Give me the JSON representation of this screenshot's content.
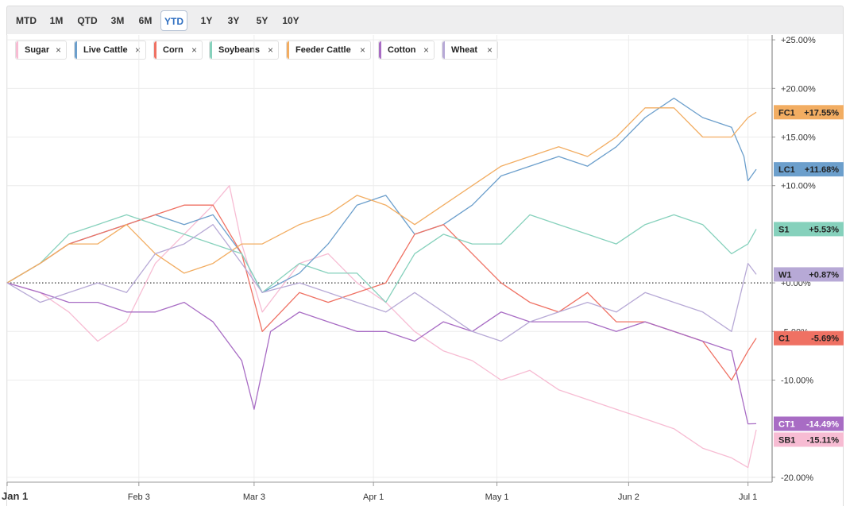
{
  "toolbar": {
    "ranges": [
      "MTD",
      "1M",
      "QTD",
      "3M",
      "6M",
      "YTD",
      "1Y",
      "3Y",
      "5Y",
      "10Y"
    ],
    "active": "YTD"
  },
  "chart_data": {
    "type": "line",
    "y_unit": "%",
    "ylim": [
      -20.5,
      25.5
    ],
    "y_ticks": [
      {
        "v": 25,
        "label": "+25.00%"
      },
      {
        "v": 20,
        "label": "+20.00%"
      },
      {
        "v": 15,
        "label": "+15.00%"
      },
      {
        "v": 10,
        "label": "+10.00%"
      },
      {
        "v": 0,
        "label": "+0.00%"
      },
      {
        "v": -5,
        "label": "-5.00%"
      },
      {
        "v": -10,
        "label": "-10.00%"
      },
      {
        "v": -20,
        "label": "-20.00%"
      }
    ],
    "x_start": "2025-01-02",
    "x_end": "2025-07-03",
    "x_ticks": [
      {
        "date": "2025-01-02",
        "label": "Jan 1"
      },
      {
        "date": "2025-02-03",
        "label": "Feb 3"
      },
      {
        "date": "2025-03-03",
        "label": "Mar 3"
      },
      {
        "date": "2025-04-01",
        "label": "Apr 1"
      },
      {
        "date": "2025-05-01",
        "label": "May 1"
      },
      {
        "date": "2025-06-02",
        "label": "Jun 2"
      },
      {
        "date": "2025-07-01",
        "label": "Jul 1"
      }
    ],
    "grid": true,
    "zero_line": "dotted",
    "legend": "top-left",
    "series": [
      {
        "name": "Sugar",
        "symbol": "SB1",
        "last": "-15.11%",
        "color": "#f7bcd3",
        "tag_text": "#222222",
        "points": [
          [
            "2025-01-02",
            0
          ],
          [
            "2025-01-10",
            -1
          ],
          [
            "2025-01-17",
            -3
          ],
          [
            "2025-01-24",
            -6
          ],
          [
            "2025-01-31",
            -4
          ],
          [
            "2025-02-07",
            2
          ],
          [
            "2025-02-14",
            5
          ],
          [
            "2025-02-21",
            8
          ],
          [
            "2025-02-25",
            10
          ],
          [
            "2025-02-28",
            4
          ],
          [
            "2025-03-05",
            -3
          ],
          [
            "2025-03-14",
            2
          ],
          [
            "2025-03-21",
            3
          ],
          [
            "2025-03-28",
            0
          ],
          [
            "2025-04-04",
            -2
          ],
          [
            "2025-04-11",
            -5
          ],
          [
            "2025-04-18",
            -7
          ],
          [
            "2025-04-25",
            -8
          ],
          [
            "2025-05-02",
            -10
          ],
          [
            "2025-05-09",
            -9
          ],
          [
            "2025-05-16",
            -11
          ],
          [
            "2025-05-23",
            -12
          ],
          [
            "2025-05-30",
            -13
          ],
          [
            "2025-06-06",
            -14
          ],
          [
            "2025-06-13",
            -15
          ],
          [
            "2025-06-20",
            -17
          ],
          [
            "2025-06-27",
            -18
          ],
          [
            "2025-07-01",
            -19
          ],
          [
            "2025-07-03",
            -15.11
          ]
        ]
      },
      {
        "name": "Live Cattle",
        "symbol": "LC1",
        "last": "+11.68%",
        "color": "#6c9fcc",
        "tag_text": "#222222",
        "points": [
          [
            "2025-01-02",
            0
          ],
          [
            "2025-01-10",
            2
          ],
          [
            "2025-01-17",
            4
          ],
          [
            "2025-01-24",
            5
          ],
          [
            "2025-01-31",
            6
          ],
          [
            "2025-02-07",
            7
          ],
          [
            "2025-02-14",
            6
          ],
          [
            "2025-02-21",
            7
          ],
          [
            "2025-02-28",
            3
          ],
          [
            "2025-03-05",
            -1
          ],
          [
            "2025-03-14",
            1
          ],
          [
            "2025-03-21",
            4
          ],
          [
            "2025-03-28",
            8
          ],
          [
            "2025-04-04",
            9
          ],
          [
            "2025-04-11",
            5
          ],
          [
            "2025-04-18",
            6
          ],
          [
            "2025-04-25",
            8
          ],
          [
            "2025-05-02",
            11
          ],
          [
            "2025-05-09",
            12
          ],
          [
            "2025-05-16",
            13
          ],
          [
            "2025-05-23",
            12
          ],
          [
            "2025-05-30",
            14
          ],
          [
            "2025-06-06",
            17
          ],
          [
            "2025-06-13",
            19
          ],
          [
            "2025-06-20",
            17
          ],
          [
            "2025-06-27",
            16
          ],
          [
            "2025-06-30",
            13
          ],
          [
            "2025-07-01",
            10.5
          ],
          [
            "2025-07-03",
            11.68
          ]
        ]
      },
      {
        "name": "Corn",
        "symbol": "C1",
        "last": "-5.69%",
        "color": "#ef7163",
        "tag_text": "#222222",
        "points": [
          [
            "2025-01-02",
            0
          ],
          [
            "2025-01-10",
            2
          ],
          [
            "2025-01-17",
            4
          ],
          [
            "2025-01-24",
            5
          ],
          [
            "2025-01-31",
            6
          ],
          [
            "2025-02-07",
            7
          ],
          [
            "2025-02-14",
            8
          ],
          [
            "2025-02-21",
            8
          ],
          [
            "2025-02-28",
            3
          ],
          [
            "2025-03-05",
            -5
          ],
          [
            "2025-03-14",
            -1
          ],
          [
            "2025-03-21",
            -2
          ],
          [
            "2025-03-28",
            -1
          ],
          [
            "2025-04-04",
            0
          ],
          [
            "2025-04-11",
            5
          ],
          [
            "2025-04-18",
            6
          ],
          [
            "2025-04-25",
            3
          ],
          [
            "2025-05-02",
            0
          ],
          [
            "2025-05-09",
            -2
          ],
          [
            "2025-05-16",
            -3
          ],
          [
            "2025-05-23",
            -1
          ],
          [
            "2025-05-30",
            -4
          ],
          [
            "2025-06-06",
            -4
          ],
          [
            "2025-06-13",
            -5
          ],
          [
            "2025-06-20",
            -6
          ],
          [
            "2025-06-27",
            -10
          ],
          [
            "2025-07-01",
            -7
          ],
          [
            "2025-07-03",
            -5.69
          ]
        ]
      },
      {
        "name": "Soybeans",
        "symbol": "S1",
        "last": "+5.53%",
        "color": "#86d1bc",
        "tag_text": "#222222",
        "points": [
          [
            "2025-01-02",
            0
          ],
          [
            "2025-01-10",
            2
          ],
          [
            "2025-01-17",
            5
          ],
          [
            "2025-01-24",
            6
          ],
          [
            "2025-01-31",
            7
          ],
          [
            "2025-02-07",
            6
          ],
          [
            "2025-02-14",
            5
          ],
          [
            "2025-02-21",
            4
          ],
          [
            "2025-02-28",
            3
          ],
          [
            "2025-03-05",
            -1
          ],
          [
            "2025-03-14",
            2
          ],
          [
            "2025-03-21",
            1
          ],
          [
            "2025-03-28",
            1
          ],
          [
            "2025-04-04",
            -2
          ],
          [
            "2025-04-11",
            3
          ],
          [
            "2025-04-18",
            5
          ],
          [
            "2025-04-25",
            4
          ],
          [
            "2025-05-02",
            4
          ],
          [
            "2025-05-09",
            7
          ],
          [
            "2025-05-16",
            6
          ],
          [
            "2025-05-23",
            5
          ],
          [
            "2025-05-30",
            4
          ],
          [
            "2025-06-06",
            6
          ],
          [
            "2025-06-13",
            7
          ],
          [
            "2025-06-20",
            6
          ],
          [
            "2025-06-27",
            3
          ],
          [
            "2025-07-01",
            4
          ],
          [
            "2025-07-03",
            5.53
          ]
        ]
      },
      {
        "name": "Feeder Cattle",
        "symbol": "FC1",
        "last": "+17.55%",
        "color": "#f2ad62",
        "tag_text": "#222222",
        "points": [
          [
            "2025-01-02",
            0
          ],
          [
            "2025-01-10",
            2
          ],
          [
            "2025-01-17",
            4
          ],
          [
            "2025-01-24",
            4
          ],
          [
            "2025-01-31",
            6
          ],
          [
            "2025-02-07",
            3
          ],
          [
            "2025-02-14",
            1
          ],
          [
            "2025-02-21",
            2
          ],
          [
            "2025-02-28",
            4
          ],
          [
            "2025-03-05",
            4
          ],
          [
            "2025-03-14",
            6
          ],
          [
            "2025-03-21",
            7
          ],
          [
            "2025-03-28",
            9
          ],
          [
            "2025-04-04",
            8
          ],
          [
            "2025-04-11",
            6
          ],
          [
            "2025-04-18",
            8
          ],
          [
            "2025-04-25",
            10
          ],
          [
            "2025-05-02",
            12
          ],
          [
            "2025-05-09",
            13
          ],
          [
            "2025-05-16",
            14
          ],
          [
            "2025-05-23",
            13
          ],
          [
            "2025-05-30",
            15
          ],
          [
            "2025-06-06",
            18
          ],
          [
            "2025-06-13",
            18
          ],
          [
            "2025-06-20",
            15
          ],
          [
            "2025-06-27",
            15
          ],
          [
            "2025-07-01",
            17
          ],
          [
            "2025-07-03",
            17.55
          ]
        ]
      },
      {
        "name": "Cotton",
        "symbol": "CT1",
        "last": "-14.49%",
        "color": "#a86cc4",
        "tag_text": "#ffffff",
        "points": [
          [
            "2025-01-02",
            0
          ],
          [
            "2025-01-10",
            -1
          ],
          [
            "2025-01-17",
            -2
          ],
          [
            "2025-01-24",
            -2
          ],
          [
            "2025-01-31",
            -3
          ],
          [
            "2025-02-07",
            -3
          ],
          [
            "2025-02-14",
            -2
          ],
          [
            "2025-02-21",
            -4
          ],
          [
            "2025-02-28",
            -8
          ],
          [
            "2025-03-03",
            -13
          ],
          [
            "2025-03-07",
            -5
          ],
          [
            "2025-03-14",
            -3
          ],
          [
            "2025-03-21",
            -4
          ],
          [
            "2025-03-28",
            -5
          ],
          [
            "2025-04-04",
            -5
          ],
          [
            "2025-04-11",
            -6
          ],
          [
            "2025-04-18",
            -4
          ],
          [
            "2025-04-25",
            -5
          ],
          [
            "2025-05-02",
            -3
          ],
          [
            "2025-05-09",
            -4
          ],
          [
            "2025-05-16",
            -4
          ],
          [
            "2025-05-23",
            -4
          ],
          [
            "2025-05-30",
            -5
          ],
          [
            "2025-06-06",
            -4
          ],
          [
            "2025-06-13",
            -5
          ],
          [
            "2025-06-20",
            -6
          ],
          [
            "2025-06-27",
            -7
          ],
          [
            "2025-07-01",
            -14.5
          ],
          [
            "2025-07-03",
            -14.49
          ]
        ]
      },
      {
        "name": "Wheat",
        "symbol": "W1",
        "last": "+0.87%",
        "color": "#b7a9d6",
        "tag_text": "#222222",
        "points": [
          [
            "2025-01-02",
            0
          ],
          [
            "2025-01-10",
            -2
          ],
          [
            "2025-01-17",
            -1
          ],
          [
            "2025-01-24",
            0
          ],
          [
            "2025-01-31",
            -1
          ],
          [
            "2025-02-07",
            3
          ],
          [
            "2025-02-14",
            4
          ],
          [
            "2025-02-21",
            6
          ],
          [
            "2025-02-28",
            2
          ],
          [
            "2025-03-05",
            -1
          ],
          [
            "2025-03-14",
            0
          ],
          [
            "2025-03-21",
            -1
          ],
          [
            "2025-03-28",
            -2
          ],
          [
            "2025-04-04",
            -3
          ],
          [
            "2025-04-11",
            -1
          ],
          [
            "2025-04-18",
            -3
          ],
          [
            "2025-04-25",
            -5
          ],
          [
            "2025-05-02",
            -6
          ],
          [
            "2025-05-09",
            -4
          ],
          [
            "2025-05-16",
            -3
          ],
          [
            "2025-05-23",
            -2
          ],
          [
            "2025-05-30",
            -3
          ],
          [
            "2025-06-06",
            -1
          ],
          [
            "2025-06-13",
            -2
          ],
          [
            "2025-06-20",
            -3
          ],
          [
            "2025-06-27",
            -5
          ],
          [
            "2025-07-01",
            2
          ],
          [
            "2025-07-03",
            0.87
          ]
        ]
      }
    ]
  }
}
